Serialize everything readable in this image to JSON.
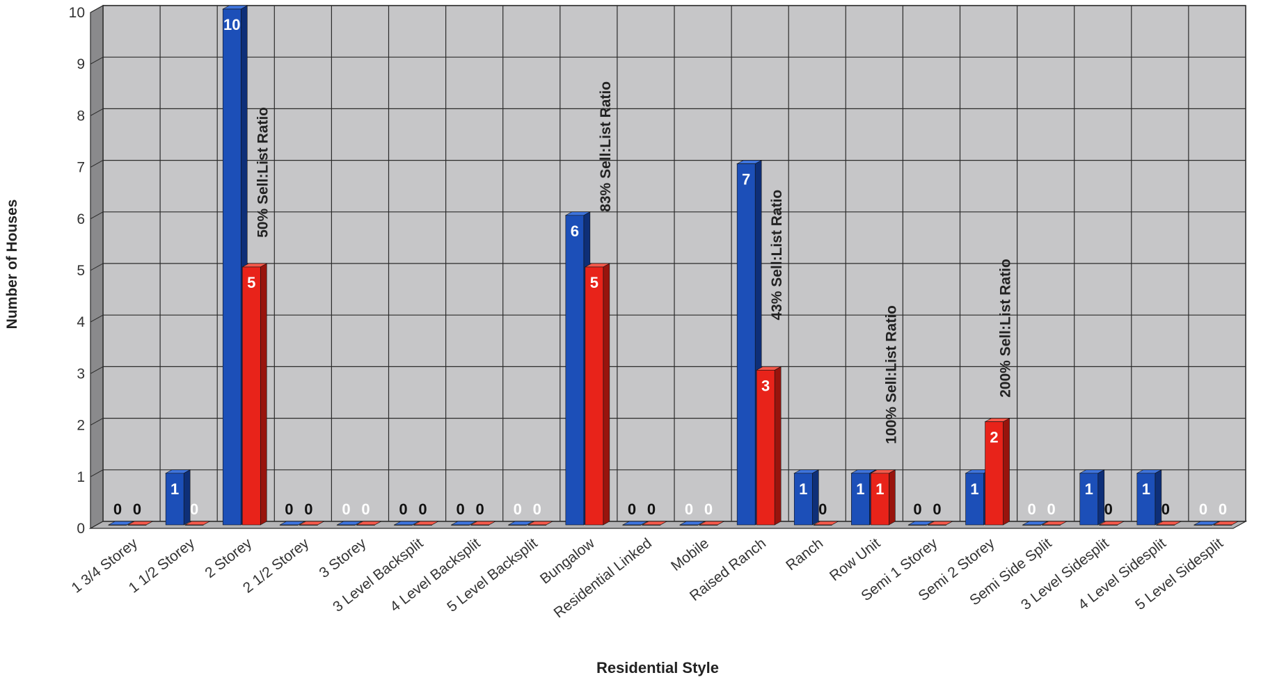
{
  "chart_data": {
    "type": "bar",
    "title": "",
    "xlabel": "Residential Style",
    "ylabel": "Number of Houses",
    "ylim": [
      0,
      10
    ],
    "yticks": [
      "0",
      "1",
      "2",
      "3",
      "4",
      "5",
      "6",
      "7",
      "8",
      "9",
      "10"
    ],
    "grid": true,
    "legend": "none",
    "categories": [
      "1 3/4 Storey",
      "1 1/2 Storey",
      "2 Storey",
      "2 1/2 Storey",
      "3 Storey",
      "3 Level Backsplit",
      "4 Level Backsplit",
      "5 Level Backsplit",
      "Bungalow",
      "Residential Linked",
      "Mobile",
      "Raised Ranch",
      "Ranch",
      "Row Unit",
      "Semi 1 Storey",
      "Semi 2 Storey",
      "Semi Side Split",
      "3 Level Sidesplit",
      "4 Level Sidesplit",
      "5 Level Sidesplit"
    ],
    "series": [
      {
        "values": [
          0,
          1,
          10,
          0,
          0,
          0,
          0,
          0,
          6,
          0,
          0,
          7,
          1,
          1,
          0,
          1,
          0,
          1,
          1,
          0
        ]
      },
      {
        "values": [
          0,
          0,
          5,
          0,
          0,
          0,
          0,
          0,
          5,
          0,
          0,
          3,
          0,
          1,
          0,
          2,
          0,
          0,
          0,
          0
        ]
      }
    ],
    "data_labels": [
      [
        "0",
        "1",
        "10",
        "0",
        "0",
        "0",
        "0",
        "0",
        "6",
        "0",
        "0",
        "7",
        "1",
        "1",
        "0",
        "1",
        "0",
        "1",
        "1",
        "0"
      ],
      [
        "0",
        "0",
        "5",
        "0",
        "0",
        "0",
        "0",
        "0",
        "5",
        "0",
        "0",
        "3",
        "0",
        "1",
        "0",
        "2",
        "0",
        "0",
        "0",
        "0"
      ]
    ],
    "annotations": [
      {
        "text": "50%  Sell:List Ratio",
        "category_index": 2,
        "y_start": 5.5
      },
      {
        "text": "83%  Sell:List Ratio",
        "category_index": 8,
        "y_start": 6.0
      },
      {
        "text": "43% Sell:List Ratio",
        "category_index": 11,
        "y_start": 3.9
      },
      {
        "text": "100% Sell:List Ratio",
        "category_index": 13,
        "y_start": 1.5
      },
      {
        "text": "200% Sell:List Ratio",
        "category_index": 15,
        "y_start": 2.4
      }
    ],
    "colors": {
      "series_1": "#1c4fb8",
      "series_1_top": "#3e74dd",
      "series_1_side": "#0e2f78",
      "series_2": "#e8231a",
      "series_2_top": "#f45a4c",
      "series_2_side": "#98140d",
      "plot_background": "#c6c6c8",
      "grid": "#2a2a2a",
      "floor": "#b4b4b6",
      "wall_side": "#8a8a8c"
    }
  }
}
